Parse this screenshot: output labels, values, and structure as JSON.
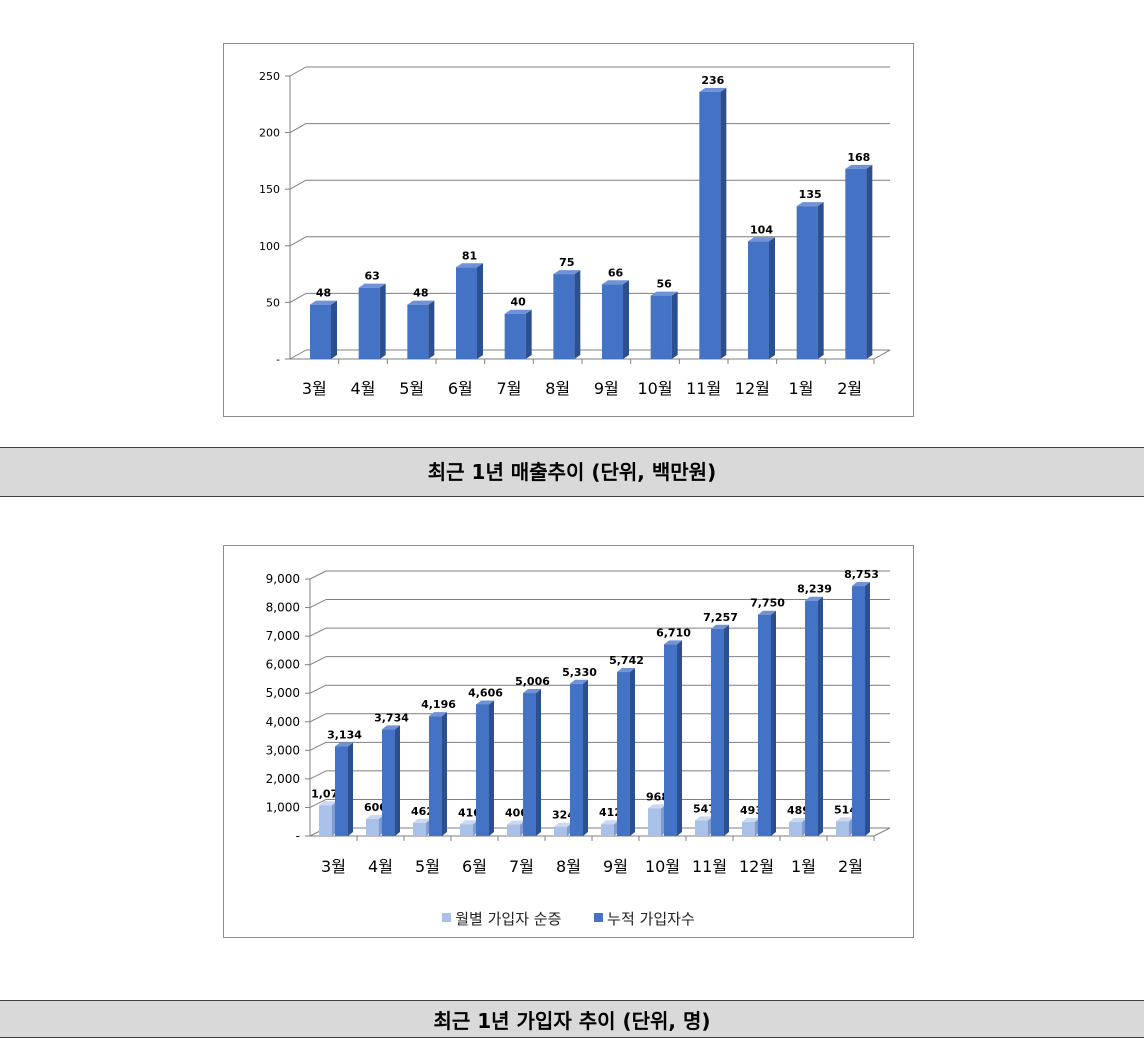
{
  "captions": {
    "chart1": "최근 1년 매출추이 (단위, 백만원)",
    "chart2": "최근 1년 가입자 추이 (단위, 명)"
  },
  "colors": {
    "bar_front": "#4472c4",
    "bar_top": "#6f93d6",
    "bar_side": "#2c4f8f",
    "light_front": "#a9c0e8",
    "light_top": "#cbd8f2",
    "light_side": "#7f9bd0",
    "grid": "#7f7f7f"
  },
  "chart_data": [
    {
      "type": "bar",
      "title": "",
      "categories": [
        "3월",
        "4월",
        "5월",
        "6월",
        "7월",
        "8월",
        "9월",
        "10월",
        "11월",
        "12월",
        "1월",
        "2월"
      ],
      "values": [
        48,
        63,
        48,
        81,
        40,
        75,
        66,
        56,
        236,
        104,
        135,
        168
      ],
      "ylim": [
        0,
        250
      ],
      "yticks": [
        0,
        50,
        100,
        150,
        200,
        250
      ],
      "ytick_labels": [
        "-",
        "50",
        "100",
        "150",
        "200",
        "250"
      ],
      "data_labels": [
        "48",
        "63",
        "48",
        "81",
        "40",
        "75",
        "66",
        "56",
        "236",
        "104",
        "135",
        "168"
      ],
      "grid": true,
      "style": "3d-column"
    },
    {
      "type": "bar",
      "title": "",
      "categories": [
        "3월",
        "4월",
        "5월",
        "6월",
        "7월",
        "8월",
        "9월",
        "10월",
        "11월",
        "12월",
        "1월",
        "2월"
      ],
      "ylim": [
        0,
        9000
      ],
      "yticks": [
        0,
        1000,
        2000,
        3000,
        4000,
        5000,
        6000,
        7000,
        8000,
        9000
      ],
      "ytick_labels": [
        "-",
        "1,000",
        "2,000",
        "3,000",
        "4,000",
        "5,000",
        "6,000",
        "7,000",
        "8,000",
        "9,000"
      ],
      "series": [
        {
          "name": "월별 가입자 순증",
          "values": [
            1075,
            600,
            462,
            410,
            400,
            324,
            412,
            968,
            547,
            493,
            489,
            514
          ],
          "data_labels": [
            "1,075",
            "600",
            "462",
            "410",
            "400",
            "324",
            "412",
            "968",
            "547",
            "493",
            "489",
            "514"
          ]
        },
        {
          "name": "누적 가입자수",
          "values": [
            3134,
            3734,
            4196,
            4606,
            5006,
            5330,
            5742,
            6710,
            7257,
            7750,
            8239,
            8753
          ],
          "data_labels": [
            "3,134",
            "3,734",
            "4,196",
            "4,606",
            "5,006",
            "5,330",
            "5,742",
            "6,710",
            "7,257",
            "7,750",
            "8,239",
            "8,753"
          ]
        }
      ],
      "legend_position": "bottom",
      "grid": true,
      "style": "3d-column"
    }
  ]
}
